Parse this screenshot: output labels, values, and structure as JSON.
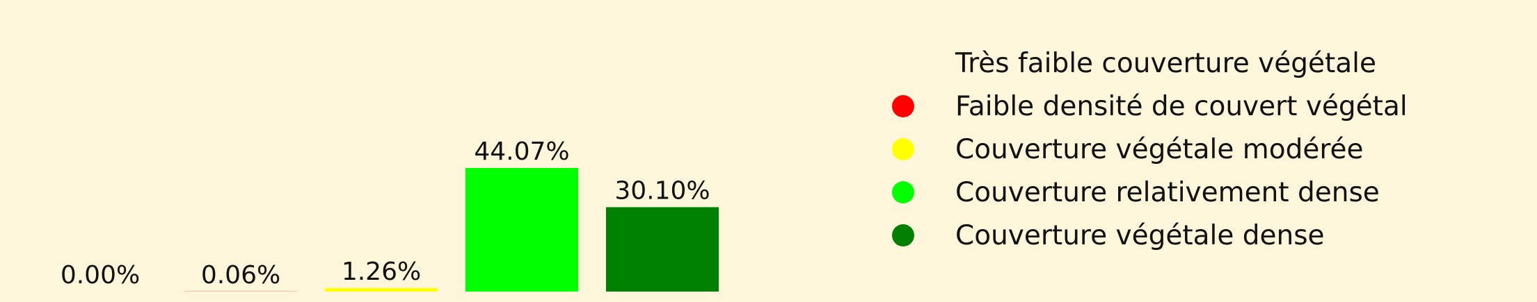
{
  "chart_data": {
    "type": "bar",
    "categories": [
      "Très faible couverture végétale",
      "Faible densité de couvert végétal",
      "Couverture végétale modérée",
      "Couverture relativement dense",
      "Couverture végétale dense"
    ],
    "values": [
      0.0,
      0.06,
      1.26,
      44.07,
      30.1
    ],
    "data_labels": [
      "0.00%",
      "0.06%",
      "1.26%",
      "44.07%",
      "30.10%"
    ],
    "colors": [
      "#fdf6da",
      "#ff0000",
      "#ffff00",
      "#00ff00",
      "#008000"
    ],
    "title": "",
    "xlabel": "",
    "ylabel": "",
    "ylim": [
      0,
      44.07
    ],
    "grid": false,
    "legend_position": "right",
    "unit": "%"
  }
}
